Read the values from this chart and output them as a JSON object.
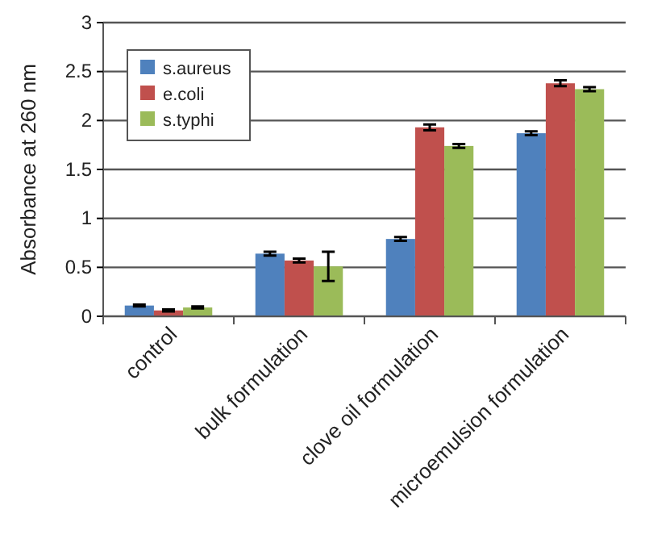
{
  "chart_data": {
    "type": "bar",
    "ylabel": "Absorbance at 260 nm",
    "categories": [
      "control",
      "bulk formulation",
      "clove oil formulation",
      "microemulsion formulation"
    ],
    "series": [
      {
        "name": "s.aureus",
        "color": "#4f81bd",
        "values": [
          0.11,
          0.64,
          0.79,
          1.87
        ],
        "errors": [
          0.01,
          0.02,
          0.02,
          0.02
        ]
      },
      {
        "name": "e.coli",
        "color": "#c0504d",
        "values": [
          0.06,
          0.57,
          1.93,
          2.38
        ],
        "errors": [
          0.01,
          0.02,
          0.03,
          0.03
        ]
      },
      {
        "name": "s.typhi",
        "color": "#9bbb59",
        "values": [
          0.09,
          0.51,
          1.74,
          2.32
        ],
        "errors": [
          0.01,
          0.15,
          0.02,
          0.02
        ]
      }
    ],
    "ylim": [
      0,
      3
    ],
    "yticks": [
      0,
      0.5,
      1,
      1.5,
      2,
      2.5,
      3
    ],
    "grid": "y",
    "legend": "top left"
  }
}
